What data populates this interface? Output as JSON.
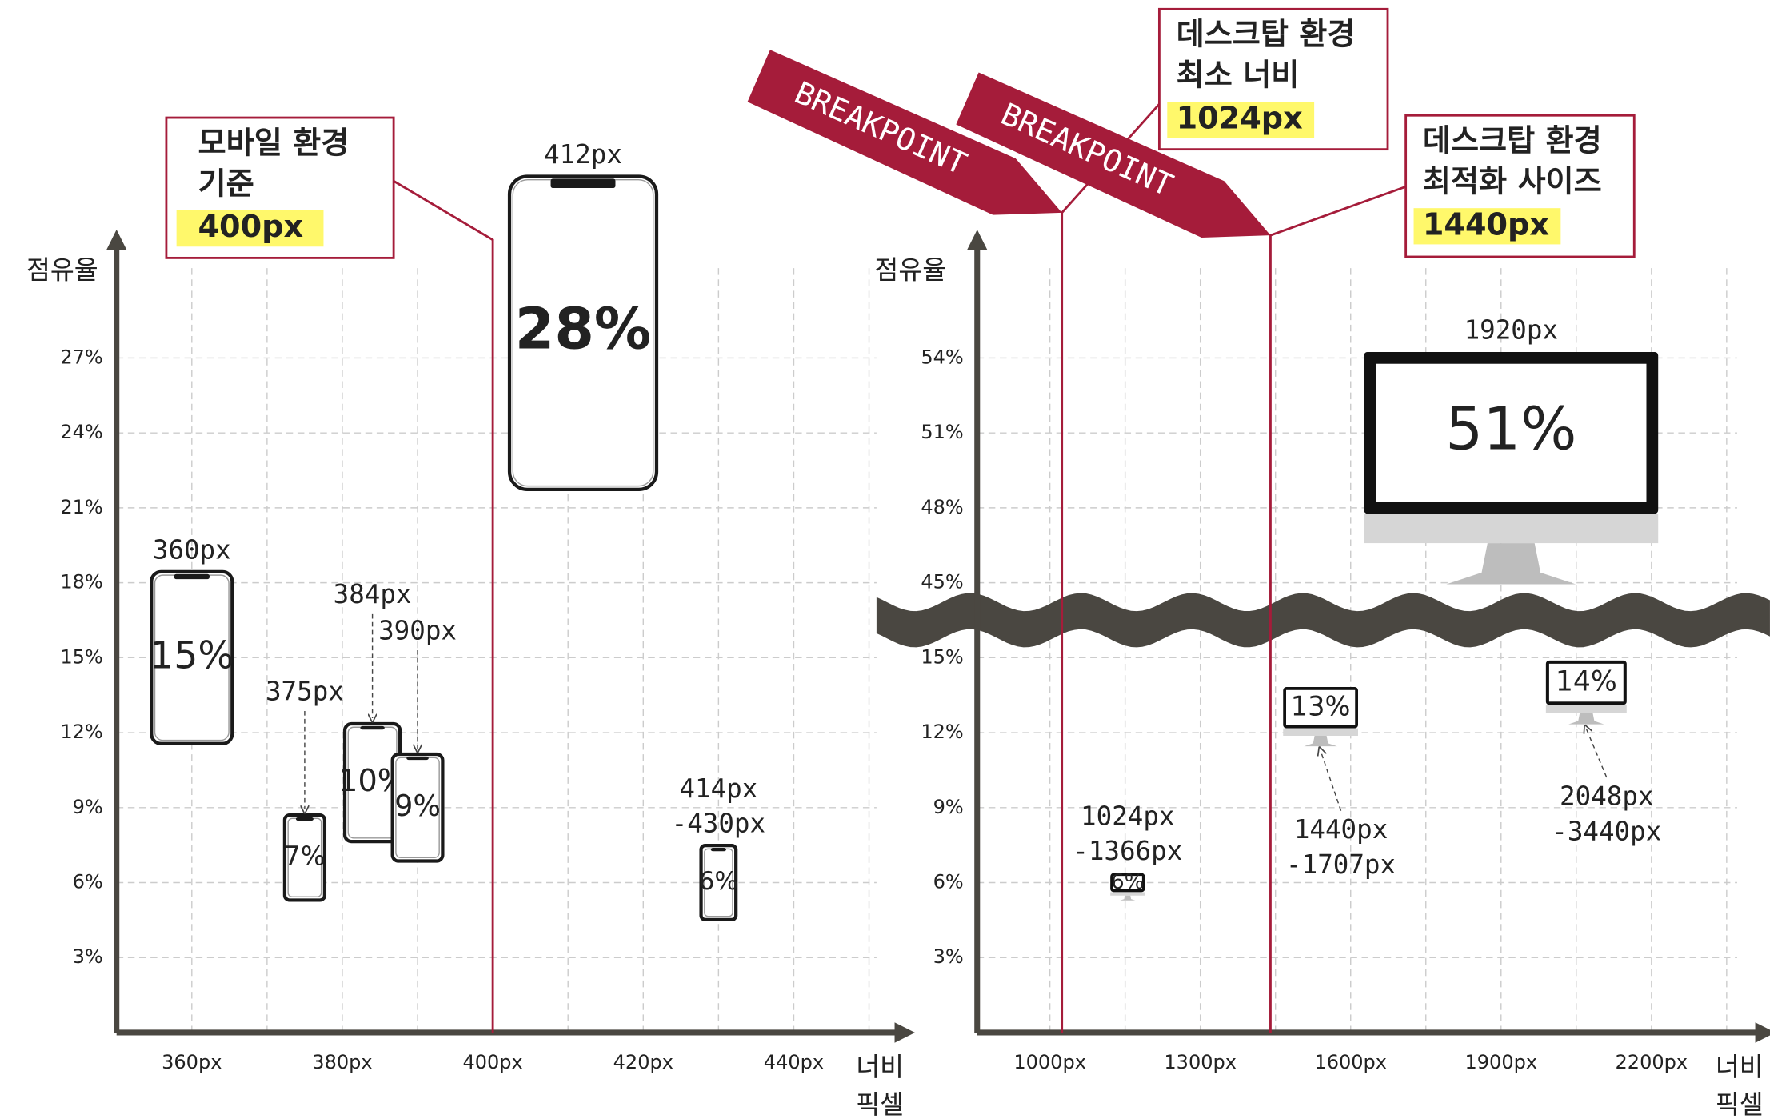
{
  "chart_data": [
    {
      "type": "scatter",
      "marker": "phone",
      "ylabel": "점유율",
      "xlabel": [
        "너비",
        "픽셀"
      ],
      "x": [
        360,
        375,
        384,
        390,
        412,
        430
      ],
      "values": [
        15,
        7,
        10,
        9,
        28,
        6
      ],
      "value_labels": [
        "15%",
        "7%",
        "10%",
        "9%",
        "28%",
        "6%"
      ],
      "point_labels": [
        [
          "360px"
        ],
        [
          "375px"
        ],
        [
          "384px"
        ],
        [
          "390px"
        ],
        [
          "412px"
        ],
        [
          "414px",
          "-430px"
        ]
      ],
      "xlim": [
        350,
        454
      ],
      "ylim": [
        0,
        31.5
      ],
      "xticks": [
        {
          "value": 360,
          "label": "360px"
        },
        {
          "value": 380,
          "label": "380px"
        },
        {
          "value": 400,
          "label": "400px"
        },
        {
          "value": 420,
          "label": "420px"
        },
        {
          "value": 440,
          "label": "440px"
        }
      ],
      "yticks": [
        {
          "value": 3,
          "label": "3%"
        },
        {
          "value": 6,
          "label": "6%"
        },
        {
          "value": 9,
          "label": "9%"
        },
        {
          "value": 12,
          "label": "12%"
        },
        {
          "value": 15,
          "label": "15%"
        },
        {
          "value": 18,
          "label": "18%"
        },
        {
          "value": 21,
          "label": "21%"
        },
        {
          "value": 24,
          "label": "24%"
        },
        {
          "value": 27,
          "label": "27%"
        }
      ],
      "grid": true,
      "color": "#1a1a1a",
      "axis_color": "#4a4741",
      "line_color": "#a51c3a",
      "highlight_color": "#fff86b",
      "breakpoints": [
        {
          "x": 400,
          "lines": [
            "모바일 환경",
            "기준"
          ],
          "highlight": "400px"
        }
      ]
    },
    {
      "type": "scatter",
      "marker": "monitor",
      "ylabel": "점유율",
      "xlabel": [
        "너비",
        "픽셀"
      ],
      "x": [
        1155,
        1540,
        2070,
        1920
      ],
      "values": [
        6,
        13,
        14,
        51
      ],
      "value_labels": [
        "6%",
        "13%",
        "14%",
        "51%"
      ],
      "point_labels": [
        [
          "1024px",
          "-1366px"
        ],
        [
          "1440px",
          "-1707px"
        ],
        [
          "2048px",
          "-3440px"
        ],
        [
          "1920px"
        ]
      ],
      "xlim": [
        855,
        2416
      ],
      "ylim": [
        0,
        58.5
      ],
      "ybreak": [
        16.5,
        43.5
      ],
      "xticks": [
        {
          "value": 1000,
          "label": "1000px"
        },
        {
          "value": 1300,
          "label": "1300px"
        },
        {
          "value": 1600,
          "label": "1600px"
        },
        {
          "value": 1900,
          "label": "1900px"
        },
        {
          "value": 2200,
          "label": "2200px"
        }
      ],
      "yticks": [
        {
          "value": 3,
          "label": "3%"
        },
        {
          "value": 6,
          "label": "6%"
        },
        {
          "value": 9,
          "label": "9%"
        },
        {
          "value": 12,
          "label": "12%"
        },
        {
          "value": 15,
          "label": "15%"
        },
        {
          "value": 45,
          "label": "45%"
        },
        {
          "value": 48,
          "label": "48%"
        },
        {
          "value": 51,
          "label": "51%"
        },
        {
          "value": 54,
          "label": "54%"
        }
      ],
      "grid": true,
      "color": "#111111",
      "axis_color": "#4a4741",
      "line_color": "#a51c3a",
      "highlight_color": "#fff86b",
      "breakpoints": [
        {
          "x": 1024,
          "banner": "BREAKPOINT",
          "lines": [
            "데스크탑 환경",
            "최소 너비"
          ],
          "highlight": "1024px"
        },
        {
          "x": 1440,
          "banner": "BREAKPOINT",
          "lines": [
            "데스크탑 환경",
            "최적화 사이즈"
          ],
          "highlight": "1440px"
        }
      ]
    }
  ]
}
